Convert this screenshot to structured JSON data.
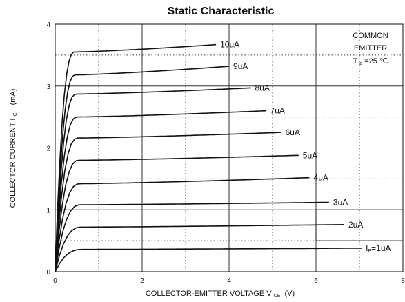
{
  "chart_data": {
    "type": "line",
    "title": "Static Characteristic",
    "xlabel": "COLLECTOR-EMITTER VOLTAGE V",
    "xlabel_sub": "CE",
    "xlabel_unit": "(V)",
    "ylabel": "COLLECTOR CURRENT  I",
    "ylabel_sub": "C",
    "ylabel_unit": "(mA)",
    "xlim": [
      0,
      8
    ],
    "ylim": [
      0,
      4
    ],
    "x_ticks": [
      "0",
      "2",
      "4",
      "6",
      "8"
    ],
    "y_ticks": [
      "0",
      "1",
      "2",
      "3",
      "4"
    ],
    "grid": true,
    "annotation": {
      "line1": "COMMON",
      "line2": "EMITTER",
      "line3_prefix": "T",
      "line3_sub": "a",
      "line3_suffix": "=25 ℃"
    },
    "series": [
      {
        "name": "10uA",
        "label_prefix": "",
        "label_sub": "",
        "label_value": "10uA",
        "x_end": 3.7,
        "plateau": 3.55,
        "end": 3.67
      },
      {
        "name": "9uA",
        "label_prefix": "",
        "label_sub": "",
        "label_value": "9uA",
        "x_end": 4.0,
        "plateau": 3.18,
        "end": 3.32
      },
      {
        "name": "8uA",
        "label_prefix": "",
        "label_sub": "",
        "label_value": "8uA",
        "x_end": 4.5,
        "plateau": 2.87,
        "end": 2.97
      },
      {
        "name": "7uA",
        "label_prefix": "",
        "label_sub": "",
        "label_value": "7uA",
        "x_end": 4.85,
        "plateau": 2.5,
        "end": 2.6
      },
      {
        "name": "6uA",
        "label_prefix": "",
        "label_sub": "",
        "label_value": "6uA",
        "x_end": 5.2,
        "plateau": 2.16,
        "end": 2.25
      },
      {
        "name": "5uA",
        "label_prefix": "",
        "label_sub": "",
        "label_value": "5uA",
        "x_end": 5.6,
        "plateau": 1.8,
        "end": 1.88
      },
      {
        "name": "4uA",
        "label_prefix": "",
        "label_sub": "",
        "label_value": "4uA",
        "x_end": 5.85,
        "plateau": 1.42,
        "end": 1.52
      },
      {
        "name": "3uA",
        "label_prefix": "",
        "label_sub": "",
        "label_value": "3uA",
        "x_end": 6.3,
        "plateau": 1.08,
        "end": 1.12
      },
      {
        "name": "2uA",
        "label_prefix": "",
        "label_sub": "",
        "label_value": "2uA",
        "x_end": 6.65,
        "plateau": 0.72,
        "end": 0.76
      },
      {
        "name": "1uA",
        "label_prefix": "I",
        "label_sub": "B",
        "label_value": "=1uA",
        "x_end": 7.05,
        "plateau": 0.36,
        "end": 0.38
      }
    ]
  }
}
